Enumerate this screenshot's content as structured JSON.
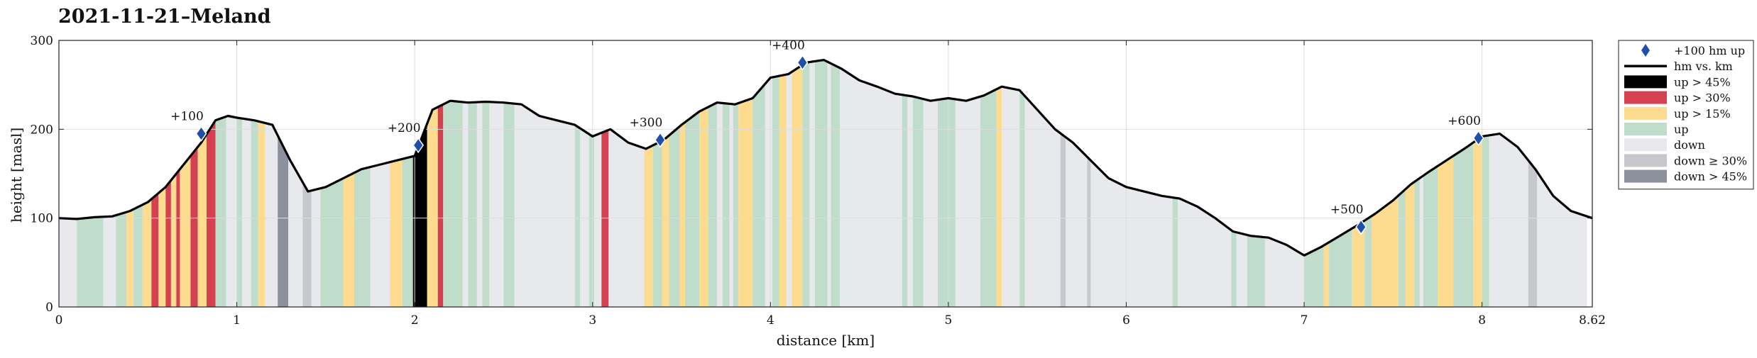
{
  "chart_data": {
    "type": "area",
    "title": "2021-11-21–Meland",
    "xlabel": "distance [km]",
    "ylabel": "height [masl]",
    "xlim": [
      0,
      8.62
    ],
    "ylim": [
      0,
      300
    ],
    "xticks": [
      "0",
      "1",
      "2",
      "3",
      "4",
      "5",
      "6",
      "7",
      "8",
      "8.62"
    ],
    "yticks": [
      "0",
      "100",
      "200",
      "300"
    ],
    "grid": true,
    "legend_position": "outside-right",
    "series": [
      {
        "name": "hm vs. km",
        "x": [
          0,
          0.1,
          0.2,
          0.3,
          0.4,
          0.5,
          0.6,
          0.7,
          0.8,
          0.88,
          0.95,
          1.0,
          1.1,
          1.2,
          1.3,
          1.4,
          1.5,
          1.6,
          1.7,
          1.8,
          1.9,
          2.0,
          2.1,
          2.2,
          2.3,
          2.4,
          2.5,
          2.6,
          2.7,
          2.8,
          2.9,
          3.0,
          3.1,
          3.2,
          3.3,
          3.4,
          3.5,
          3.6,
          3.7,
          3.8,
          3.9,
          4.0,
          4.1,
          4.2,
          4.3,
          4.4,
          4.5,
          4.6,
          4.7,
          4.8,
          4.9,
          5.0,
          5.1,
          5.2,
          5.3,
          5.4,
          5.5,
          5.6,
          5.7,
          5.8,
          5.9,
          6.0,
          6.1,
          6.2,
          6.3,
          6.4,
          6.5,
          6.6,
          6.7,
          6.8,
          6.9,
          7.0,
          7.1,
          7.2,
          7.3,
          7.4,
          7.5,
          7.6,
          7.7,
          7.8,
          7.9,
          8.0,
          8.1,
          8.2,
          8.3,
          8.4,
          8.5,
          8.62
        ],
        "y": [
          100,
          99,
          101,
          102,
          108,
          118,
          135,
          160,
          185,
          210,
          215,
          213,
          210,
          205,
          165,
          130,
          135,
          145,
          155,
          160,
          165,
          170,
          222,
          232,
          230,
          231,
          230,
          228,
          215,
          210,
          205,
          192,
          200,
          185,
          178,
          188,
          205,
          220,
          230,
          228,
          235,
          258,
          262,
          275,
          278,
          268,
          255,
          248,
          240,
          237,
          232,
          235,
          232,
          238,
          248,
          244,
          222,
          200,
          185,
          165,
          145,
          135,
          130,
          125,
          122,
          113,
          100,
          85,
          80,
          78,
          70,
          58,
          68,
          80,
          92,
          105,
          120,
          138,
          152,
          165,
          178,
          192,
          195,
          180,
          155,
          125,
          108,
          100
        ]
      },
      {
        "name": "+100 hm up",
        "x": [
          0.8,
          2.02,
          3.38,
          4.18,
          7.32,
          7.98
        ],
        "y": [
          195,
          182,
          188,
          275,
          90,
          190
        ],
        "labels": [
          "+100",
          "+200",
          "+300",
          "+400",
          "+500",
          "+600"
        ]
      }
    ],
    "gradient_bands": [
      {
        "from": 0.0,
        "to": 0.1,
        "cls": "down"
      },
      {
        "from": 0.1,
        "to": 0.25,
        "cls": "up"
      },
      {
        "from": 0.25,
        "to": 0.32,
        "cls": "down"
      },
      {
        "from": 0.32,
        "to": 0.38,
        "cls": "up"
      },
      {
        "from": 0.38,
        "to": 0.42,
        "cls": "up15"
      },
      {
        "from": 0.42,
        "to": 0.47,
        "cls": "up"
      },
      {
        "from": 0.47,
        "to": 0.52,
        "cls": "up15"
      },
      {
        "from": 0.52,
        "to": 0.56,
        "cls": "up30"
      },
      {
        "from": 0.56,
        "to": 0.6,
        "cls": "up15"
      },
      {
        "from": 0.6,
        "to": 0.63,
        "cls": "up30"
      },
      {
        "from": 0.63,
        "to": 0.66,
        "cls": "up15"
      },
      {
        "from": 0.66,
        "to": 0.68,
        "cls": "up30"
      },
      {
        "from": 0.68,
        "to": 0.74,
        "cls": "up15"
      },
      {
        "from": 0.74,
        "to": 0.78,
        "cls": "up30"
      },
      {
        "from": 0.78,
        "to": 0.83,
        "cls": "up15"
      },
      {
        "from": 0.83,
        "to": 0.88,
        "cls": "up30"
      },
      {
        "from": 0.88,
        "to": 0.94,
        "cls": "up"
      },
      {
        "from": 0.94,
        "to": 1.0,
        "cls": "down"
      },
      {
        "from": 1.0,
        "to": 1.03,
        "cls": "up"
      },
      {
        "from": 1.03,
        "to": 1.08,
        "cls": "down"
      },
      {
        "from": 1.08,
        "to": 1.12,
        "cls": "up"
      },
      {
        "from": 1.12,
        "to": 1.16,
        "cls": "up15"
      },
      {
        "from": 1.16,
        "to": 1.23,
        "cls": "down"
      },
      {
        "from": 1.23,
        "to": 1.29,
        "cls": "down45"
      },
      {
        "from": 1.29,
        "to": 1.37,
        "cls": "down"
      },
      {
        "from": 1.37,
        "to": 1.42,
        "cls": "down30"
      },
      {
        "from": 1.42,
        "to": 1.47,
        "cls": "down"
      },
      {
        "from": 1.47,
        "to": 1.6,
        "cls": "up"
      },
      {
        "from": 1.6,
        "to": 1.66,
        "cls": "up15"
      },
      {
        "from": 1.66,
        "to": 1.75,
        "cls": "up"
      },
      {
        "from": 1.75,
        "to": 1.86,
        "cls": "down"
      },
      {
        "from": 1.86,
        "to": 1.93,
        "cls": "up15"
      },
      {
        "from": 1.93,
        "to": 1.99,
        "cls": "up"
      },
      {
        "from": 1.99,
        "to": 2.07,
        "cls": "up45"
      },
      {
        "from": 2.07,
        "to": 2.13,
        "cls": "up15"
      },
      {
        "from": 2.13,
        "to": 2.16,
        "cls": "up30"
      },
      {
        "from": 2.16,
        "to": 2.27,
        "cls": "up"
      },
      {
        "from": 2.27,
        "to": 2.3,
        "cls": "down"
      },
      {
        "from": 2.3,
        "to": 2.35,
        "cls": "up"
      },
      {
        "from": 2.35,
        "to": 2.38,
        "cls": "down"
      },
      {
        "from": 2.38,
        "to": 2.42,
        "cls": "up"
      },
      {
        "from": 2.42,
        "to": 2.5,
        "cls": "down"
      },
      {
        "from": 2.5,
        "to": 2.56,
        "cls": "up"
      },
      {
        "from": 2.56,
        "to": 2.9,
        "cls": "down"
      },
      {
        "from": 2.9,
        "to": 2.93,
        "cls": "up"
      },
      {
        "from": 2.93,
        "to": 2.98,
        "cls": "down"
      },
      {
        "from": 2.98,
        "to": 3.01,
        "cls": "up"
      },
      {
        "from": 3.01,
        "to": 3.05,
        "cls": "down"
      },
      {
        "from": 3.05,
        "to": 3.09,
        "cls": "up30"
      },
      {
        "from": 3.09,
        "to": 3.29,
        "cls": "down"
      },
      {
        "from": 3.29,
        "to": 3.34,
        "cls": "up15"
      },
      {
        "from": 3.34,
        "to": 3.39,
        "cls": "up"
      },
      {
        "from": 3.39,
        "to": 3.43,
        "cls": "up15"
      },
      {
        "from": 3.43,
        "to": 3.49,
        "cls": "up"
      },
      {
        "from": 3.49,
        "to": 3.52,
        "cls": "up15"
      },
      {
        "from": 3.52,
        "to": 3.6,
        "cls": "up"
      },
      {
        "from": 3.6,
        "to": 3.65,
        "cls": "up15"
      },
      {
        "from": 3.65,
        "to": 3.7,
        "cls": "up"
      },
      {
        "from": 3.7,
        "to": 3.73,
        "cls": "down"
      },
      {
        "from": 3.73,
        "to": 3.77,
        "cls": "up"
      },
      {
        "from": 3.77,
        "to": 3.79,
        "cls": "down"
      },
      {
        "from": 3.79,
        "to": 3.82,
        "cls": "up"
      },
      {
        "from": 3.82,
        "to": 3.9,
        "cls": "up15"
      },
      {
        "from": 3.9,
        "to": 3.97,
        "cls": "up"
      },
      {
        "from": 3.97,
        "to": 4.01,
        "cls": "down"
      },
      {
        "from": 4.01,
        "to": 4.05,
        "cls": "up"
      },
      {
        "from": 4.05,
        "to": 4.09,
        "cls": "up15"
      },
      {
        "from": 4.09,
        "to": 4.12,
        "cls": "down"
      },
      {
        "from": 4.12,
        "to": 4.18,
        "cls": "up15"
      },
      {
        "from": 4.18,
        "to": 4.22,
        "cls": "up"
      },
      {
        "from": 4.22,
        "to": 4.25,
        "cls": "down"
      },
      {
        "from": 4.25,
        "to": 4.32,
        "cls": "up"
      },
      {
        "from": 4.32,
        "to": 4.34,
        "cls": "down"
      },
      {
        "from": 4.34,
        "to": 4.39,
        "cls": "up"
      },
      {
        "from": 4.39,
        "to": 4.74,
        "cls": "down"
      },
      {
        "from": 4.74,
        "to": 4.77,
        "cls": "up"
      },
      {
        "from": 4.77,
        "to": 4.8,
        "cls": "down"
      },
      {
        "from": 4.8,
        "to": 4.86,
        "cls": "up"
      },
      {
        "from": 4.86,
        "to": 4.94,
        "cls": "down"
      },
      {
        "from": 4.94,
        "to": 5.04,
        "cls": "up"
      },
      {
        "from": 5.04,
        "to": 5.18,
        "cls": "down"
      },
      {
        "from": 5.18,
        "to": 5.27,
        "cls": "up"
      },
      {
        "from": 5.27,
        "to": 5.3,
        "cls": "up15"
      },
      {
        "from": 5.3,
        "to": 5.4,
        "cls": "down"
      },
      {
        "from": 5.4,
        "to": 5.43,
        "cls": "up"
      },
      {
        "from": 5.43,
        "to": 5.63,
        "cls": "down"
      },
      {
        "from": 5.63,
        "to": 5.66,
        "cls": "down30"
      },
      {
        "from": 5.66,
        "to": 5.78,
        "cls": "down"
      },
      {
        "from": 5.78,
        "to": 5.8,
        "cls": "down30"
      },
      {
        "from": 5.8,
        "to": 6.26,
        "cls": "down"
      },
      {
        "from": 6.26,
        "to": 6.29,
        "cls": "up"
      },
      {
        "from": 6.29,
        "to": 6.59,
        "cls": "down"
      },
      {
        "from": 6.59,
        "to": 6.62,
        "cls": "up"
      },
      {
        "from": 6.62,
        "to": 6.68,
        "cls": "down"
      },
      {
        "from": 6.68,
        "to": 6.78,
        "cls": "up"
      },
      {
        "from": 6.78,
        "to": 7.0,
        "cls": "down"
      },
      {
        "from": 7.0,
        "to": 7.11,
        "cls": "up"
      },
      {
        "from": 7.11,
        "to": 7.14,
        "cls": "up15"
      },
      {
        "from": 7.14,
        "to": 7.27,
        "cls": "up"
      },
      {
        "from": 7.27,
        "to": 7.34,
        "cls": "up15"
      },
      {
        "from": 7.34,
        "to": 7.38,
        "cls": "up"
      },
      {
        "from": 7.38,
        "to": 7.53,
        "cls": "up15"
      },
      {
        "from": 7.53,
        "to": 7.57,
        "cls": "up"
      },
      {
        "from": 7.57,
        "to": 7.62,
        "cls": "up15"
      },
      {
        "from": 7.62,
        "to": 7.65,
        "cls": "up"
      },
      {
        "from": 7.65,
        "to": 7.67,
        "cls": "down"
      },
      {
        "from": 7.67,
        "to": 7.75,
        "cls": "up"
      },
      {
        "from": 7.75,
        "to": 7.84,
        "cls": "up15"
      },
      {
        "from": 7.84,
        "to": 7.95,
        "cls": "up"
      },
      {
        "from": 7.95,
        "to": 8.0,
        "cls": "up15"
      },
      {
        "from": 8.0,
        "to": 8.04,
        "cls": "up"
      },
      {
        "from": 8.04,
        "to": 8.26,
        "cls": "down"
      },
      {
        "from": 8.26,
        "to": 8.31,
        "cls": "down30"
      },
      {
        "from": 8.31,
        "to": 8.59,
        "cls": "down"
      }
    ],
    "legend": [
      {
        "key": "marker",
        "label": "+100 hm up"
      },
      {
        "key": "line",
        "label": "hm vs. km"
      },
      {
        "key": "up45",
        "label": "up > 45%"
      },
      {
        "key": "up30",
        "label": "up > 30%"
      },
      {
        "key": "up15",
        "label": "up > 15%"
      },
      {
        "key": "up",
        "label": "up"
      },
      {
        "key": "down",
        "label": "down"
      },
      {
        "key": "down30",
        "label": "down ≥ 30%"
      },
      {
        "key": "down45",
        "label": "down > 45%"
      }
    ],
    "colors": {
      "up45": "#000000",
      "up30": "#d64151",
      "up15": "#fddc90",
      "up": "#c0dccb",
      "down": "#e8e9ec",
      "down30": "#c7c8ce",
      "down45": "#8b909c",
      "marker": "#1f4fa8",
      "line": "#000000",
      "grid": "#dddddd"
    }
  }
}
